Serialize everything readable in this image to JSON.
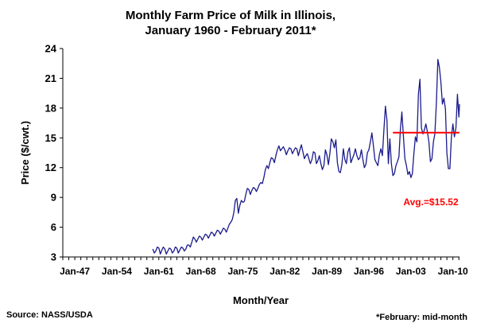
{
  "chart_data": {
    "type": "line",
    "title_line1": "Monthly Farm Price of Milk in Illinois,",
    "title_line2": "January 1960 - February 2011*",
    "xlabel": "Month/Year",
    "ylabel": "Price ($/cwt.)",
    "ylim": [
      3,
      24
    ],
    "yticks": [
      3,
      6,
      9,
      12,
      15,
      18,
      21,
      24
    ],
    "xlim": [
      "Jan-1945",
      "Feb-2011"
    ],
    "xtick_labels": [
      "Jan-47",
      "Jan-54",
      "Jan-61",
      "Jan-68",
      "Jan-75",
      "Jan-82",
      "Jan-89",
      "Jan-96",
      "Jan-03",
      "Jan-10"
    ],
    "xtick_years": [
      1947,
      1954,
      1961,
      1968,
      1975,
      1982,
      1989,
      1996,
      2003,
      2010
    ],
    "grid": false,
    "series": [
      {
        "color": "#1a1a8c",
        "points": [
          [
            1960.0,
            3.8
          ],
          [
            1960.25,
            3.4
          ],
          [
            1960.5,
            3.6
          ],
          [
            1960.75,
            4.0
          ],
          [
            1961.0,
            3.9
          ],
          [
            1961.25,
            3.3
          ],
          [
            1961.5,
            3.7
          ],
          [
            1961.75,
            4.0
          ],
          [
            1962.0,
            3.8
          ],
          [
            1962.25,
            3.3
          ],
          [
            1962.5,
            3.6
          ],
          [
            1962.75,
            3.9
          ],
          [
            1963.0,
            3.8
          ],
          [
            1963.25,
            3.4
          ],
          [
            1963.5,
            3.6
          ],
          [
            1963.75,
            4.0
          ],
          [
            1964.0,
            3.9
          ],
          [
            1964.25,
            3.4
          ],
          [
            1964.5,
            3.7
          ],
          [
            1964.75,
            4.0
          ],
          [
            1965.0,
            3.9
          ],
          [
            1965.25,
            3.6
          ],
          [
            1965.5,
            3.8
          ],
          [
            1965.75,
            4.2
          ],
          [
            1966.0,
            4.2
          ],
          [
            1966.25,
            4.0
          ],
          [
            1966.5,
            4.5
          ],
          [
            1966.75,
            5.0
          ],
          [
            1967.0,
            4.8
          ],
          [
            1967.25,
            4.5
          ],
          [
            1967.5,
            4.8
          ],
          [
            1967.75,
            5.1
          ],
          [
            1968.0,
            5.0
          ],
          [
            1968.25,
            4.7
          ],
          [
            1968.5,
            5.0
          ],
          [
            1968.75,
            5.3
          ],
          [
            1969.0,
            5.2
          ],
          [
            1969.25,
            4.9
          ],
          [
            1969.5,
            5.2
          ],
          [
            1969.75,
            5.5
          ],
          [
            1970.0,
            5.4
          ],
          [
            1970.25,
            5.1
          ],
          [
            1970.5,
            5.4
          ],
          [
            1970.75,
            5.7
          ],
          [
            1971.0,
            5.6
          ],
          [
            1971.25,
            5.3
          ],
          [
            1971.5,
            5.6
          ],
          [
            1971.75,
            5.9
          ],
          [
            1972.0,
            5.8
          ],
          [
            1972.25,
            5.5
          ],
          [
            1972.5,
            5.9
          ],
          [
            1972.75,
            6.3
          ],
          [
            1973.0,
            6.5
          ],
          [
            1973.25,
            6.8
          ],
          [
            1973.5,
            7.5
          ],
          [
            1973.75,
            8.7
          ],
          [
            1974.0,
            8.9
          ],
          [
            1974.25,
            7.4
          ],
          [
            1974.5,
            8.2
          ],
          [
            1974.75,
            8.7
          ],
          [
            1975.0,
            8.5
          ],
          [
            1975.25,
            8.6
          ],
          [
            1975.5,
            9.3
          ],
          [
            1975.75,
            9.9
          ],
          [
            1976.0,
            9.8
          ],
          [
            1976.25,
            9.3
          ],
          [
            1976.5,
            9.7
          ],
          [
            1976.75,
            10.0
          ],
          [
            1977.0,
            9.9
          ],
          [
            1977.25,
            9.6
          ],
          [
            1977.5,
            9.9
          ],
          [
            1977.75,
            10.3
          ],
          [
            1978.0,
            10.5
          ],
          [
            1978.25,
            10.4
          ],
          [
            1978.5,
            11.0
          ],
          [
            1978.75,
            11.8
          ],
          [
            1979.0,
            12.2
          ],
          [
            1979.25,
            11.9
          ],
          [
            1979.5,
            12.5
          ],
          [
            1979.75,
            13.0
          ],
          [
            1980.0,
            12.9
          ],
          [
            1980.25,
            12.5
          ],
          [
            1980.5,
            13.2
          ],
          [
            1980.75,
            13.8
          ],
          [
            1981.0,
            14.2
          ],
          [
            1981.25,
            13.7
          ],
          [
            1981.5,
            13.9
          ],
          [
            1981.75,
            14.1
          ],
          [
            1982.0,
            13.8
          ],
          [
            1982.25,
            13.3
          ],
          [
            1982.5,
            13.7
          ],
          [
            1982.75,
            14.0
          ],
          [
            1983.0,
            13.9
          ],
          [
            1983.25,
            13.4
          ],
          [
            1983.5,
            13.7
          ],
          [
            1983.75,
            14.0
          ],
          [
            1984.0,
            13.9
          ],
          [
            1984.25,
            13.2
          ],
          [
            1984.5,
            13.8
          ],
          [
            1984.75,
            14.3
          ],
          [
            1985.0,
            13.6
          ],
          [
            1985.25,
            12.9
          ],
          [
            1985.5,
            13.2
          ],
          [
            1985.75,
            13.4
          ],
          [
            1986.0,
            12.9
          ],
          [
            1986.25,
            12.4
          ],
          [
            1986.5,
            12.8
          ],
          [
            1986.75,
            13.6
          ],
          [
            1987.0,
            13.5
          ],
          [
            1987.25,
            12.4
          ],
          [
            1987.5,
            12.7
          ],
          [
            1987.75,
            13.2
          ],
          [
            1988.0,
            12.4
          ],
          [
            1988.25,
            11.8
          ],
          [
            1988.5,
            12.2
          ],
          [
            1988.75,
            13.8
          ],
          [
            1989.0,
            13.3
          ],
          [
            1989.25,
            12.3
          ],
          [
            1989.5,
            13.4
          ],
          [
            1989.75,
            14.9
          ],
          [
            1990.0,
            14.6
          ],
          [
            1990.25,
            14.0
          ],
          [
            1990.5,
            14.8
          ],
          [
            1990.75,
            12.5
          ],
          [
            1991.0,
            11.6
          ],
          [
            1991.25,
            11.5
          ],
          [
            1991.5,
            12.3
          ],
          [
            1991.75,
            13.9
          ],
          [
            1992.0,
            12.8
          ],
          [
            1992.25,
            12.4
          ],
          [
            1992.5,
            13.6
          ],
          [
            1992.75,
            14.0
          ],
          [
            1993.0,
            12.5
          ],
          [
            1993.25,
            12.9
          ],
          [
            1993.5,
            13.3
          ],
          [
            1993.75,
            13.9
          ],
          [
            1994.0,
            13.2
          ],
          [
            1994.25,
            12.8
          ],
          [
            1994.5,
            13.0
          ],
          [
            1994.75,
            13.8
          ],
          [
            1995.0,
            12.8
          ],
          [
            1995.25,
            12.0
          ],
          [
            1995.5,
            12.3
          ],
          [
            1995.75,
            13.5
          ],
          [
            1996.0,
            13.8
          ],
          [
            1996.25,
            14.6
          ],
          [
            1996.5,
            15.5
          ],
          [
            1996.75,
            14.2
          ],
          [
            1997.0,
            12.8
          ],
          [
            1997.25,
            12.5
          ],
          [
            1997.5,
            12.2
          ],
          [
            1997.75,
            13.3
          ],
          [
            1998.0,
            13.9
          ],
          [
            1998.25,
            13.2
          ],
          [
            1998.5,
            15.8
          ],
          [
            1998.75,
            18.2
          ],
          [
            1999.0,
            16.8
          ],
          [
            1999.25,
            12.4
          ],
          [
            1999.5,
            14.9
          ],
          [
            1999.75,
            12.4
          ],
          [
            2000.0,
            11.2
          ],
          [
            2000.25,
            11.4
          ],
          [
            2000.5,
            12.2
          ],
          [
            2000.75,
            12.6
          ],
          [
            2001.0,
            13.1
          ],
          [
            2001.25,
            15.8
          ],
          [
            2001.5,
            17.6
          ],
          [
            2001.75,
            15.2
          ],
          [
            2002.0,
            12.9
          ],
          [
            2002.25,
            12.2
          ],
          [
            2002.5,
            11.3
          ],
          [
            2002.75,
            11.6
          ],
          [
            2003.0,
            11.0
          ],
          [
            2003.25,
            11.4
          ],
          [
            2003.5,
            13.4
          ],
          [
            2003.75,
            15.1
          ],
          [
            2004.0,
            14.6
          ],
          [
            2004.25,
            19.4
          ],
          [
            2004.5,
            20.9
          ],
          [
            2004.75,
            16.0
          ],
          [
            2005.0,
            15.4
          ],
          [
            2005.25,
            15.8
          ],
          [
            2005.5,
            16.4
          ],
          [
            2005.75,
            15.6
          ],
          [
            2006.0,
            14.6
          ],
          [
            2006.25,
            12.6
          ],
          [
            2006.5,
            12.9
          ],
          [
            2006.75,
            14.6
          ],
          [
            2007.0,
            15.4
          ],
          [
            2007.25,
            18.5
          ],
          [
            2007.5,
            22.9
          ],
          [
            2007.75,
            22.1
          ],
          [
            2008.0,
            20.6
          ],
          [
            2008.25,
            18.4
          ],
          [
            2008.5,
            19.0
          ],
          [
            2008.75,
            17.9
          ],
          [
            2009.0,
            13.5
          ],
          [
            2009.25,
            11.9
          ],
          [
            2009.5,
            11.9
          ],
          [
            2009.75,
            15.1
          ],
          [
            2010.0,
            16.4
          ],
          [
            2010.25,
            15.1
          ],
          [
            2010.5,
            16.0
          ],
          [
            2010.75,
            19.4
          ],
          [
            2011.0,
            17.1
          ],
          [
            2011.1,
            18.4
          ]
        ]
      }
    ],
    "average_line": {
      "value": 15.52,
      "x_start": "Jan-2000",
      "x_end": "Feb-2011",
      "color": "#ff0000",
      "label": "Avg.=$15.52"
    },
    "footer_left": "Source: NASS/USDA",
    "footer_right": "*February: mid-month"
  }
}
